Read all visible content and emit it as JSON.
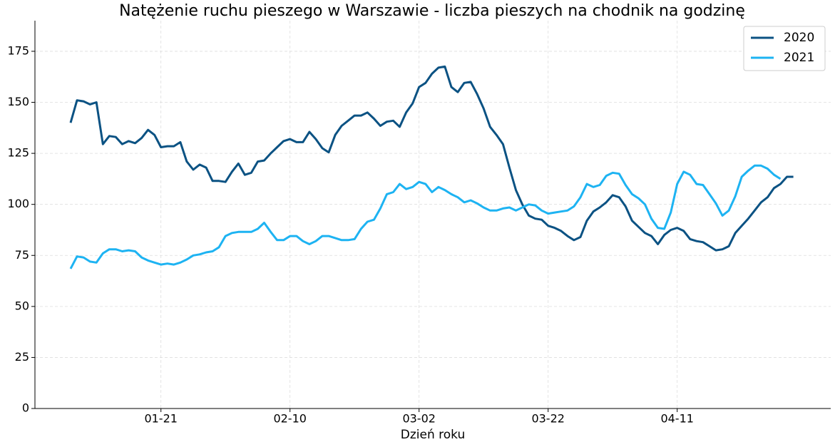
{
  "chart_data": {
    "type": "line",
    "title": "Natężenie ruchu pieszego w Warszawie - liczba pieszych na chodnik na godzinę",
    "x_label": "Dzień roku",
    "x": [
      "01-07",
      "01-08",
      "01-09",
      "01-10",
      "01-11",
      "01-12",
      "01-13",
      "01-14",
      "01-15",
      "01-16",
      "01-17",
      "01-18",
      "01-19",
      "01-20",
      "01-21",
      "01-22",
      "01-23",
      "01-24",
      "01-25",
      "01-26",
      "01-27",
      "01-28",
      "01-29",
      "01-30",
      "01-31",
      "02-01",
      "02-02",
      "02-03",
      "02-04",
      "02-05",
      "02-06",
      "02-07",
      "02-08",
      "02-09",
      "02-10",
      "02-11",
      "02-12",
      "02-13",
      "02-14",
      "02-15",
      "02-16",
      "02-17",
      "02-18",
      "02-19",
      "02-20",
      "02-21",
      "02-22",
      "02-23",
      "02-24",
      "02-25",
      "02-26",
      "02-27",
      "02-28",
      "03-01",
      "03-02",
      "03-03",
      "03-04",
      "03-05",
      "03-06",
      "03-07",
      "03-08",
      "03-09",
      "03-10",
      "03-11",
      "03-12",
      "03-13",
      "03-14",
      "03-15",
      "03-16",
      "03-17",
      "03-18",
      "03-19",
      "03-20",
      "03-21",
      "03-22",
      "03-23",
      "03-24",
      "03-25",
      "03-26",
      "03-27",
      "03-28",
      "03-29",
      "03-30",
      "03-31",
      "04-01",
      "04-02",
      "04-03",
      "04-04",
      "04-05",
      "04-06",
      "04-07",
      "04-08",
      "04-09",
      "04-10",
      "04-11",
      "04-12",
      "04-13",
      "04-14",
      "04-15",
      "04-16",
      "04-17",
      "04-18",
      "04-19",
      "04-20",
      "04-21",
      "04-22",
      "04-23",
      "04-24",
      "04-25",
      "04-26",
      "04-27",
      "04-28",
      "04-29"
    ],
    "series": [
      {
        "name": "2020",
        "color": "#0b5283",
        "values": [
          140,
          151,
          150.5,
          149,
          150,
          129.5,
          133.5,
          133,
          129.5,
          131,
          130,
          132.5,
          136.5,
          134,
          128,
          128.5,
          128.5,
          130.5,
          121,
          117,
          119.5,
          118,
          111.5,
          111.5,
          111,
          116,
          120,
          114.5,
          115.5,
          121,
          121.5,
          125,
          128,
          131,
          132,
          130.5,
          130.5,
          135.5,
          132,
          127.5,
          125.5,
          134,
          138.5,
          141,
          143.5,
          143.5,
          145,
          142,
          138.5,
          140.5,
          141,
          138,
          145,
          149.5,
          157.5,
          159.5,
          164,
          167,
          167.5,
          157.5,
          155,
          159.5,
          160,
          154,
          147,
          138,
          134,
          129.5,
          118,
          107,
          100,
          94.5,
          93,
          92.5,
          89.5,
          88.5,
          87,
          84.5,
          82.5,
          84,
          92,
          96.5,
          98.5,
          101,
          104.5,
          103.5,
          99,
          92,
          89,
          86,
          84.5,
          80.5,
          85,
          87.5,
          88.5,
          87,
          83,
          82,
          81.5,
          79.5,
          77.5,
          78,
          79.5,
          86,
          89.5,
          93,
          97,
          101,
          103.5,
          108,
          110,
          113.5,
          113.5
        ]
      },
      {
        "name": "2021",
        "color": "#1db3f2",
        "values": [
          68.5,
          74.5,
          74,
          72,
          71.5,
          76,
          78,
          78,
          77,
          77.5,
          77,
          74,
          72.5,
          71.5,
          70.5,
          71,
          70.5,
          71.5,
          73,
          75,
          75.5,
          76.5,
          77,
          79,
          84.5,
          86,
          86.5,
          86.5,
          86.5,
          88,
          91,
          86.5,
          82.5,
          82.5,
          84.5,
          84.5,
          82,
          80.5,
          82,
          84.5,
          84.5,
          83.5,
          82.5,
          82.5,
          83,
          88,
          91.5,
          92.5,
          98,
          105,
          106,
          110,
          107.5,
          108.5,
          111,
          110,
          106,
          108.5,
          107,
          105,
          103.5,
          101,
          102,
          100.5,
          98.5,
          97,
          97,
          98,
          98.5,
          97,
          98.5,
          100,
          99.5,
          97,
          95.5,
          96,
          96.5,
          97,
          99,
          103.5,
          110,
          108.5,
          109.5,
          114,
          115.5,
          115,
          109.5,
          105,
          103,
          100,
          93,
          88.5,
          88,
          96,
          110,
          116,
          114.5,
          110,
          109.5,
          105,
          100.5,
          94.5,
          97,
          104,
          113.5,
          116.5,
          119,
          119,
          117.5,
          114.5,
          112.5,
          null,
          null
        ]
      }
    ],
    "xticks": [
      "01-21",
      "02-10",
      "03-02",
      "03-22",
      "04-11"
    ],
    "ylim": [
      0,
      190
    ],
    "yticks": [
      0,
      25,
      50,
      75,
      100,
      125,
      150,
      175
    ],
    "grid": true,
    "legend": "upper right"
  }
}
